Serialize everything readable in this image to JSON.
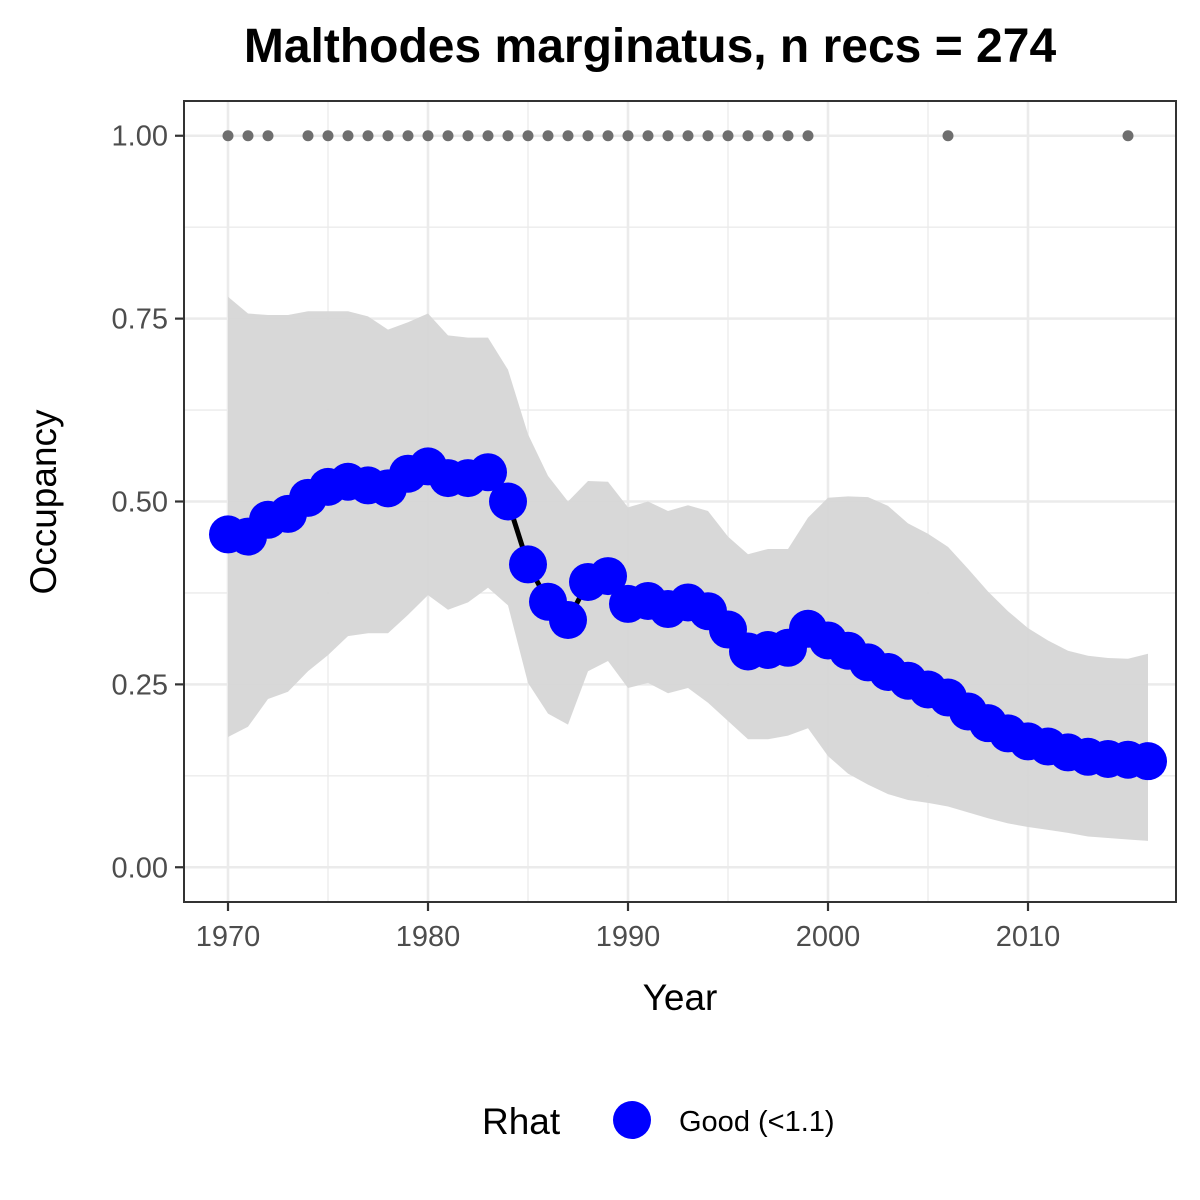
{
  "chart_data": {
    "type": "line",
    "title": "Malthodes marginatus, n recs = 274",
    "xlabel": "Year",
    "ylabel": "Occupancy",
    "xlim": [
      1967.8,
      2017.4
    ],
    "ylim": [
      -0.0475,
      1.0475
    ],
    "xticks": [
      1970,
      1980,
      1990,
      2000,
      2010
    ],
    "xtick_labels": [
      "1970",
      "1980",
      "1990",
      "2000",
      "2010"
    ],
    "yticks": [
      0,
      0.25,
      0.5,
      0.75,
      1
    ],
    "ytick_labels": [
      "0.00",
      "0.25",
      "0.50",
      "0.75",
      "1.00"
    ],
    "grid": true,
    "colors": {
      "series": "#0000ff",
      "line": "#000000",
      "ribbon": "#d6d6d6",
      "records": "#6e6e6e",
      "grid": "#ebebeb",
      "panel_border": "#333333"
    },
    "legend": {
      "title": "Rhat",
      "position": "bottom",
      "entries": [
        {
          "label": "Good (<1.1)",
          "color": "#0000ff"
        }
      ]
    },
    "series": [
      {
        "name": "Good (<1.1)",
        "x": [
          1970,
          1971,
          1972,
          1973,
          1974,
          1975,
          1976,
          1977,
          1978,
          1979,
          1980,
          1981,
          1982,
          1983,
          1984,
          1985,
          1986,
          1987,
          1988,
          1989,
          1990,
          1991,
          1992,
          1993,
          1994,
          1995,
          1996,
          1997,
          1998,
          1999,
          2000,
          2001,
          2002,
          2003,
          2004,
          2005,
          2006,
          2007,
          2008,
          2009,
          2010,
          2011,
          2012,
          2013,
          2014,
          2015,
          2016
        ],
        "y": [
          0.455,
          0.452,
          0.475,
          0.483,
          0.505,
          0.52,
          0.527,
          0.522,
          0.518,
          0.538,
          0.548,
          0.532,
          0.532,
          0.54,
          0.5,
          0.414,
          0.363,
          0.338,
          0.39,
          0.398,
          0.36,
          0.364,
          0.353,
          0.362,
          0.35,
          0.325,
          0.295,
          0.297,
          0.3,
          0.326,
          0.31,
          0.296,
          0.28,
          0.267,
          0.255,
          0.243,
          0.232,
          0.213,
          0.197,
          0.183,
          0.172,
          0.165,
          0.157,
          0.151,
          0.148,
          0.147,
          0.145
        ],
        "lower": [
          0.178,
          0.192,
          0.23,
          0.24,
          0.268,
          0.29,
          0.316,
          0.32,
          0.32,
          0.345,
          0.372,
          0.352,
          0.362,
          0.382,
          0.358,
          0.252,
          0.21,
          0.195,
          0.268,
          0.282,
          0.245,
          0.252,
          0.238,
          0.245,
          0.225,
          0.2,
          0.175,
          0.175,
          0.18,
          0.19,
          0.152,
          0.128,
          0.113,
          0.1,
          0.092,
          0.088,
          0.083,
          0.075,
          0.067,
          0.06,
          0.055,
          0.051,
          0.047,
          0.042,
          0.04,
          0.038,
          0.036
        ],
        "upper": [
          0.78,
          0.757,
          0.755,
          0.755,
          0.76,
          0.76,
          0.76,
          0.753,
          0.735,
          0.745,
          0.757,
          0.727,
          0.724,
          0.724,
          0.68,
          0.592,
          0.535,
          0.5,
          0.528,
          0.527,
          0.492,
          0.5,
          0.487,
          0.495,
          0.487,
          0.452,
          0.428,
          0.435,
          0.435,
          0.478,
          0.505,
          0.507,
          0.506,
          0.494,
          0.47,
          0.456,
          0.438,
          0.408,
          0.377,
          0.35,
          0.327,
          0.31,
          0.296,
          0.289,
          0.286,
          0.285,
          0.292
        ]
      }
    ],
    "records": {
      "y": 1,
      "x": [
        1970,
        1971,
        1972,
        1974,
        1975,
        1976,
        1977,
        1978,
        1979,
        1980,
        1981,
        1982,
        1983,
        1984,
        1985,
        1986,
        1987,
        1988,
        1989,
        1990,
        1991,
        1992,
        1993,
        1994,
        1995,
        1996,
        1997,
        1998,
        1999,
        2006,
        2015
      ]
    }
  }
}
